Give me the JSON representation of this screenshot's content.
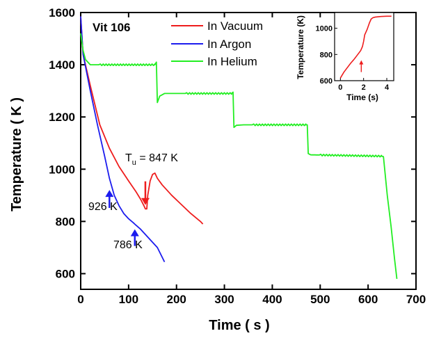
{
  "chart_data": {
    "type": "line",
    "sample_label": "Vit 106",
    "xlabel": "Time ( s )",
    "ylabel": "Temperature ( K )",
    "xlim": [
      0,
      700
    ],
    "ylim": [
      540,
      1600
    ],
    "x_ticks": [
      0,
      100,
      200,
      300,
      400,
      500,
      600,
      700
    ],
    "y_ticks": [
      600,
      800,
      1000,
      1200,
      1400,
      1600
    ],
    "grid": false,
    "legend_position": "top-center",
    "colors": {
      "vacuum": "#ee1c1c",
      "argon": "#1c1cee",
      "helium": "#22ee22"
    },
    "series": [
      {
        "name": "In Vacuum",
        "color": "#ee1c1c",
        "points": [
          [
            0,
            1585
          ],
          [
            5,
            1440
          ],
          [
            20,
            1320
          ],
          [
            40,
            1170
          ],
          [
            60,
            1080
          ],
          [
            80,
            1010
          ],
          [
            100,
            955
          ],
          [
            115,
            915
          ],
          [
            125,
            885
          ],
          [
            132,
            860
          ],
          [
            135,
            848
          ],
          [
            138,
            848
          ],
          [
            140,
            900
          ],
          [
            145,
            955
          ],
          [
            150,
            980
          ],
          [
            155,
            985
          ],
          [
            160,
            965
          ],
          [
            170,
            940
          ],
          [
            190,
            900
          ],
          [
            210,
            865
          ],
          [
            230,
            830
          ],
          [
            250,
            800
          ],
          [
            255,
            790
          ]
        ]
      },
      {
        "name": "In Argon",
        "color": "#1c1cee",
        "points": [
          [
            0,
            1585
          ],
          [
            5,
            1440
          ],
          [
            20,
            1300
          ],
          [
            35,
            1170
          ],
          [
            50,
            1050
          ],
          [
            60,
            965
          ],
          [
            70,
            900
          ],
          [
            80,
            860
          ],
          [
            90,
            830
          ],
          [
            100,
            810
          ],
          [
            110,
            795
          ],
          [
            115,
            786
          ],
          [
            125,
            770
          ],
          [
            140,
            740
          ],
          [
            160,
            700
          ],
          [
            175,
            645
          ]
        ]
      },
      {
        "name": "In Helium",
        "color": "#22ee22",
        "points": [
          [
            0,
            1520
          ],
          [
            5,
            1455
          ],
          [
            10,
            1420
          ],
          [
            20,
            1400
          ],
          [
            155,
            1400
          ],
          [
            158,
            1410
          ],
          [
            160,
            1255
          ],
          [
            165,
            1280
          ],
          [
            175,
            1290
          ],
          [
            200,
            1290
          ],
          [
            315,
            1290
          ],
          [
            318,
            1295
          ],
          [
            320,
            1160
          ],
          [
            325,
            1168
          ],
          [
            340,
            1170
          ],
          [
            470,
            1170
          ],
          [
            473,
            1170
          ],
          [
            475,
            1060
          ],
          [
            480,
            1055
          ],
          [
            628,
            1050
          ],
          [
            632,
            1048
          ],
          [
            640,
            900
          ],
          [
            648,
            780
          ],
          [
            655,
            660
          ],
          [
            660,
            580
          ]
        ]
      }
    ],
    "annotations": [
      {
        "text": "926 K",
        "x": 60,
        "y": 926,
        "arrow_color": "#1c1cee"
      },
      {
        "text": "786 K",
        "x": 113,
        "y": 786,
        "arrow_color": "#1c1cee"
      },
      {
        "text_base": "T",
        "text_sub": "u",
        "text_rest": " = 847 K",
        "x": 135,
        "y": 847,
        "arrow_color": "#ee1c1c"
      }
    ],
    "inset": {
      "xlabel": "Time (s)",
      "ylabel": "Temperature (K)",
      "xlim": [
        -0.5,
        4.6
      ],
      "ylim": [
        600,
        1120
      ],
      "x_ticks": [
        0,
        2,
        4
      ],
      "y_ticks": [
        600,
        800,
        1000
      ],
      "series": {
        "color": "#ee1c1c",
        "points": [
          [
            0.0,
            620
          ],
          [
            0.3,
            665
          ],
          [
            0.6,
            700
          ],
          [
            0.9,
            735
          ],
          [
            1.2,
            765
          ],
          [
            1.5,
            800
          ],
          [
            1.75,
            830
          ],
          [
            1.9,
            860
          ],
          [
            2.0,
            900
          ],
          [
            2.1,
            950
          ],
          [
            2.3,
            990
          ],
          [
            2.5,
            1040
          ],
          [
            2.65,
            1070
          ],
          [
            2.8,
            1080
          ],
          [
            3.0,
            1085
          ],
          [
            3.5,
            1090
          ],
          [
            4.0,
            1092
          ],
          [
            4.4,
            1092
          ]
        ]
      },
      "arrow": {
        "x": 1.8,
        "y": 740,
        "color": "#ee1c1c"
      }
    }
  }
}
